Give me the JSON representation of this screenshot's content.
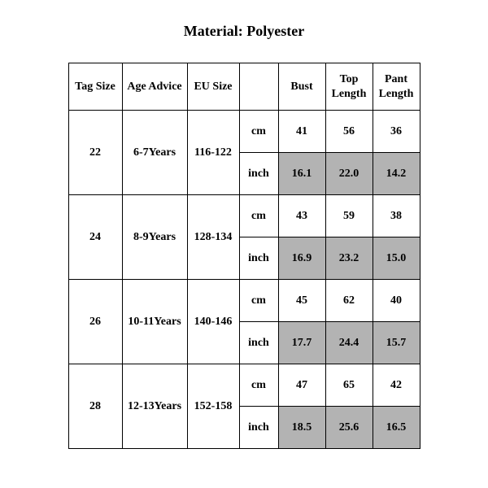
{
  "title": "Material: Polyester",
  "columns": {
    "tag": "Tag Size",
    "age": "Age Advice",
    "eu": "EU Size",
    "unit": "",
    "bust": "Bust",
    "top1": "Top",
    "top2": "Length",
    "pant1": "Pant",
    "pant2": "Length"
  },
  "unit_cm": "cm",
  "unit_inch": "inch",
  "shaded_bg": "#b3b3b3",
  "background_color": "#ffffff",
  "border_color": "#000000",
  "font_family": "Times New Roman",
  "title_fontsize_pt": 14,
  "cell_fontsize_pt": 11,
  "rows": [
    {
      "tag": "22",
      "age": "6-7Years",
      "eu": "116-122",
      "cm": {
        "bust": "41",
        "top": "56",
        "pant": "36"
      },
      "inch": {
        "bust": "16.1",
        "top": "22.0",
        "pant": "14.2"
      }
    },
    {
      "tag": "24",
      "age": "8-9Years",
      "eu": "128-134",
      "cm": {
        "bust": "43",
        "top": "59",
        "pant": "38"
      },
      "inch": {
        "bust": "16.9",
        "top": "23.2",
        "pant": "15.0"
      }
    },
    {
      "tag": "26",
      "age": "10-11Years",
      "eu": "140-146",
      "cm": {
        "bust": "45",
        "top": "62",
        "pant": "40"
      },
      "inch": {
        "bust": "17.7",
        "top": "24.4",
        "pant": "15.7"
      }
    },
    {
      "tag": "28",
      "age": "12-13Years",
      "eu": "152-158",
      "cm": {
        "bust": "47",
        "top": "65",
        "pant": "42"
      },
      "inch": {
        "bust": "18.5",
        "top": "25.6",
        "pant": "16.5"
      }
    }
  ]
}
